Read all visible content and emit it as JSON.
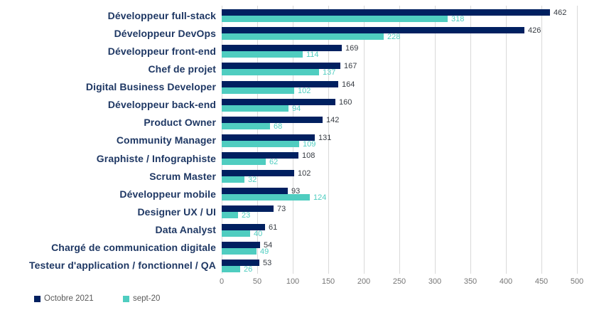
{
  "chart_data": {
    "type": "bar",
    "orientation": "horizontal",
    "title": "",
    "categories": [
      "Développeur full-stack",
      "Développeur DevOps",
      "Développeur front-end",
      "Chef de projet",
      "Digital Business Developer",
      "Développeur back-end",
      "Product Owner",
      "Community Manager",
      "Graphiste / Infographiste",
      "Scrum Master",
      "Développeur mobile",
      "Designer UX / UI",
      "Data Analyst",
      "Chargé de communication digitale",
      "Testeur d'application / fonctionnel / QA"
    ],
    "series": [
      {
        "name": "Octobre 2021",
        "color": "#002060",
        "label_color": "#363B42",
        "values": [
          462,
          426,
          169,
          167,
          164,
          160,
          142,
          131,
          108,
          102,
          93,
          73,
          61,
          54,
          53
        ]
      },
      {
        "name": "sept-20",
        "color": "#4FCDC0",
        "label_color": "#4FCDC0",
        "values": [
          318,
          228,
          114,
          137,
          102,
          94,
          68,
          109,
          62,
          32,
          124,
          23,
          40,
          49,
          26
        ]
      }
    ],
    "xlim": [
      0,
      500
    ],
    "xticks": [
      0,
      50,
      100,
      150,
      200,
      250,
      300,
      350,
      400,
      450,
      500
    ],
    "grid": "vertical-only",
    "gridline_color": "#D9D9D9",
    "axis_tick_color": "#757575",
    "category_label_color": "#1F3864",
    "legend_position": "bottom-left",
    "legend_text_color": "#595959",
    "background": "#FFFFFF"
  }
}
